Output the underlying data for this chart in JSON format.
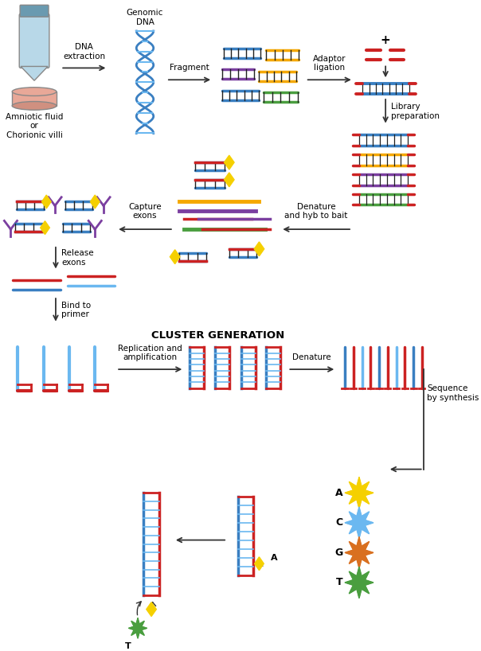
{
  "bg_color": "#ffffff",
  "figure_width": 6.04,
  "figure_height": 8.18,
  "dpi": 100,
  "labels": {
    "amniotic": "Amniotic fluid\nor\nChorionic villi",
    "genomic_dna": "Genomic\nDNA",
    "dna_extraction": "DNA\nextraction",
    "fragment": "Fragment",
    "adaptor_ligation": "Adaptor\nligation",
    "library_prep": "Library\npreparation",
    "denature": "Denature\nand hyb to bait",
    "capture": "Capture\nexons",
    "release": "Release\nexons",
    "bind_primer": "Bind to\nprimer",
    "cluster_gen": "CLUSTER GENERATION",
    "replication": "Replication and\namplification",
    "denature2": "Denature",
    "sequence": "Sequence\nby synthesis",
    "nuc_A": "A",
    "nuc_C": "C",
    "nuc_G": "G",
    "nuc_T": "T"
  },
  "colors": {
    "blue": "#3a7fc1",
    "light_blue": "#6bb8f0",
    "red": "#cc2222",
    "purple": "#7b3fa0",
    "orange": "#f5a800",
    "green": "#4a9e3f",
    "yellow": "#f5d000",
    "orange2": "#d97020",
    "tube_body": "#b8d8e8",
    "tube_cap": "#6a9ab0",
    "petri_fill": "#e8a898",
    "dark_gray": "#333333",
    "arrow_color": "#555555"
  }
}
